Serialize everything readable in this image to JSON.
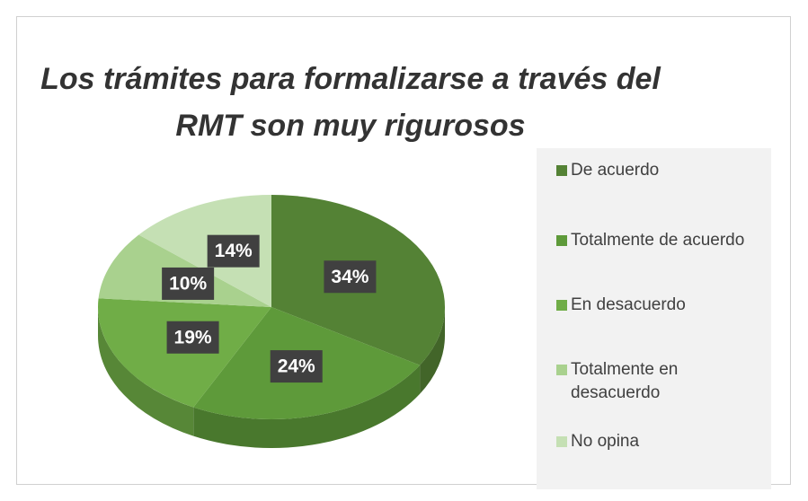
{
  "chart_data": {
    "type": "pie",
    "title": "Los trámites para formalizarse a través del RMT son muy rigurosos",
    "categories": [
      "De acuerdo",
      "Totalmente de acuerdo",
      "En desacuerdo",
      "Totalmente en desacuerdo",
      "No opina"
    ],
    "values": [
      34,
      24,
      19,
      10,
      14
    ],
    "value_labels": [
      "34%",
      "24%",
      "19%",
      "10%",
      "14%"
    ],
    "colors": [
      "#548235",
      "#5e9a3a",
      "#70ad47",
      "#a9d18e",
      "#c5e0b4"
    ],
    "legend": "right"
  }
}
